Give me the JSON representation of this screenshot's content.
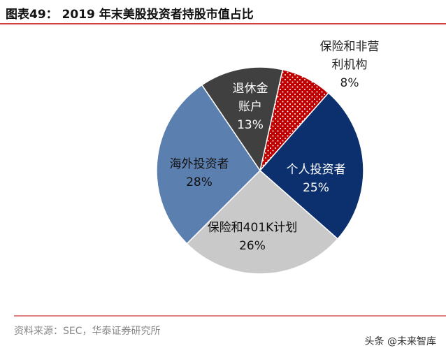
{
  "chart_data": {
    "type": "pie",
    "title": "图表49： 2019 年末美股投资者持股市值占比",
    "categories": [
      "保险和非营利机构",
      "个人投资者",
      "保险和401K计划",
      "海外投资者",
      "退休金账户"
    ],
    "values": [
      8,
      25,
      26,
      28,
      13
    ],
    "value_labels": [
      "8%",
      "25%",
      "26%",
      "28%",
      "13%"
    ],
    "colors": [
      "#c00000",
      "#0c2f6e",
      "#c9c9c9",
      "#5b7fae",
      "#404040"
    ],
    "source": "资料来源：SEC，华泰证券研究所",
    "watermark": "头条 @未来智库"
  }
}
